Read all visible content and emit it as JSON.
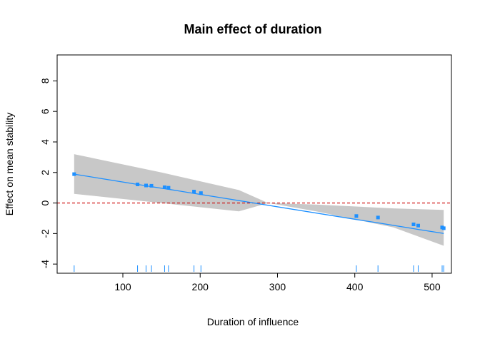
{
  "chart_data": {
    "type": "line",
    "title": "Main effect of duration",
    "xlabel": "Duration of influence",
    "ylabel": "Effect on mean stability",
    "xlim": [
      15,
      525
    ],
    "ylim": [
      -4.6,
      9.7
    ],
    "x_ticks": [
      100,
      200,
      300,
      400,
      500
    ],
    "y_ticks": [
      -4,
      -2,
      0,
      2,
      4,
      6,
      8
    ],
    "grid": false,
    "legend": "none",
    "reference_line": {
      "y": 0,
      "style": "dashed",
      "color": "#cc0000"
    },
    "series": [
      {
        "type": "line",
        "color": "#1e90ff",
        "x": [
          37,
          119,
          130,
          137,
          154,
          159,
          192,
          201,
          402,
          430,
          476,
          482,
          513,
          515
        ],
        "y": [
          1.89,
          1.22,
          1.13,
          1.07,
          0.94,
          0.9,
          0.63,
          0.56,
          -1.08,
          -1.3,
          -1.68,
          -1.73,
          -1.98,
          -2.0
        ]
      }
    ],
    "points": {
      "color": "#1e90ff",
      "x": [
        37,
        119,
        130,
        137,
        154,
        159,
        192,
        201,
        402,
        430,
        476,
        482,
        513,
        515
      ],
      "y": [
        1.89,
        1.22,
        1.15,
        1.13,
        1.03,
        1.0,
        0.75,
        0.65,
        -0.85,
        -0.95,
        -1.4,
        -1.48,
        -1.6,
        -1.65
      ]
    },
    "confidence_band": {
      "color": "#c8c8c8",
      "x": [
        37,
        150,
        250,
        288,
        350,
        450,
        515
      ],
      "upper": [
        3.2,
        2.0,
        0.85,
        0.0,
        -0.1,
        -0.35,
        -0.45
      ],
      "lower": [
        0.6,
        0.0,
        -0.55,
        0.0,
        -0.55,
        -1.6,
        -2.8
      ]
    },
    "rug": {
      "color": "#1e90ff",
      "x": [
        37,
        119,
        130,
        137,
        154,
        159,
        192,
        201,
        402,
        430,
        476,
        482,
        513,
        515
      ]
    }
  }
}
